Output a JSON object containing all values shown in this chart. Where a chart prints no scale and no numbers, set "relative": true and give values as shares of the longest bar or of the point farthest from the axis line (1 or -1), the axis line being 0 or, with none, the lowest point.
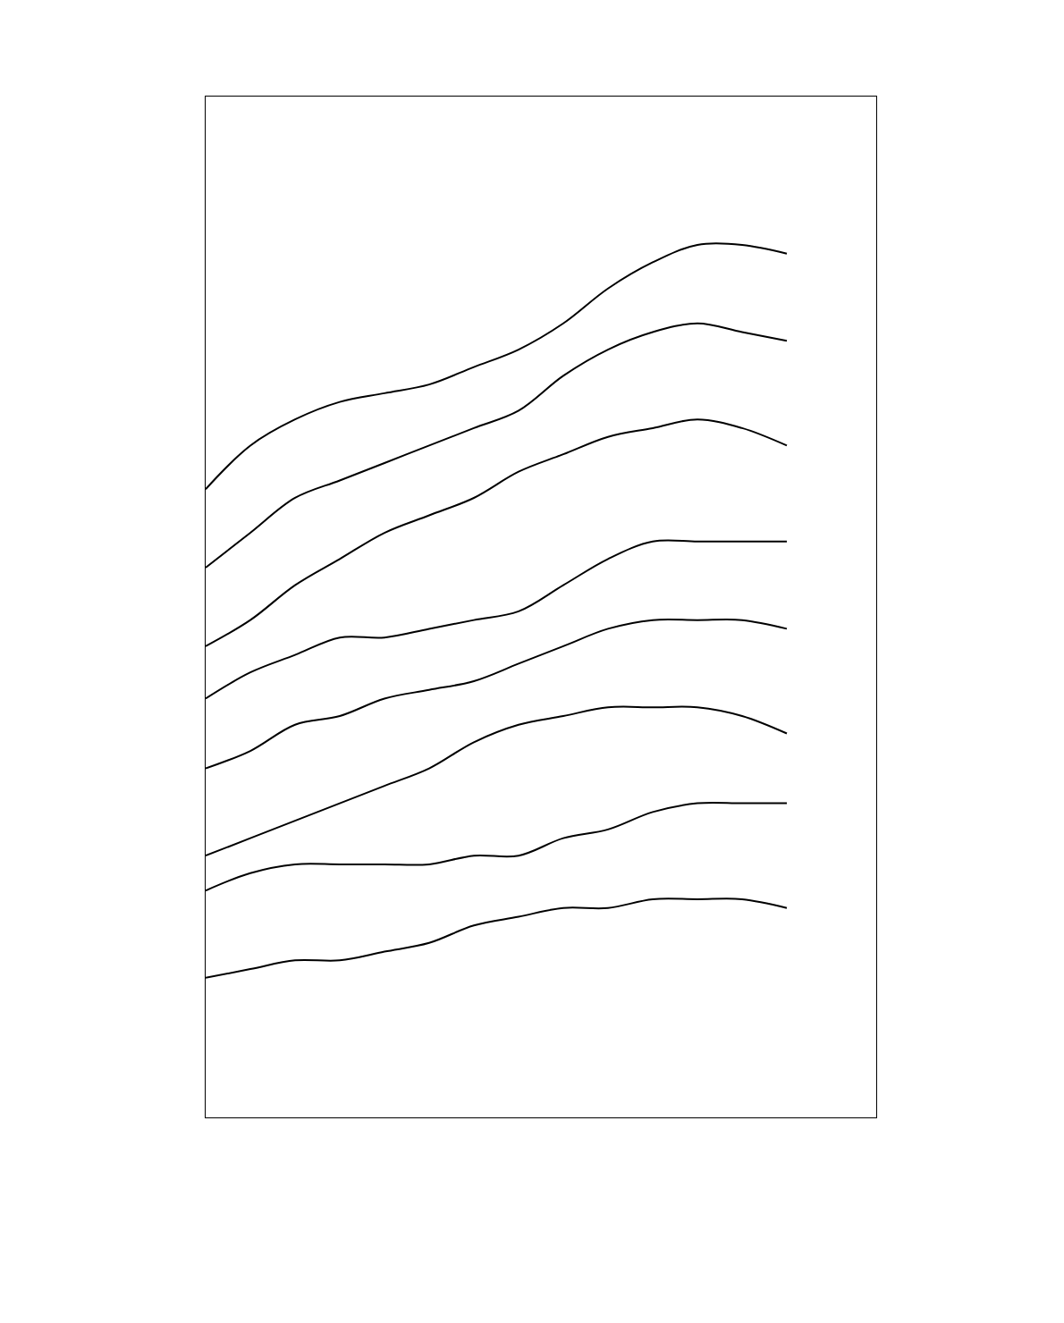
{
  "chart_data": {
    "type": "line",
    "relative": true,
    "marker": "none",
    "line_style": "solid",
    "categories": [
      null,
      null,
      null,
      null,
      null,
      null,
      null,
      null,
      null,
      null,
      null,
      null,
      null,
      null,
      null,
      null
    ],
    "series": [
      {
        "color": "#000000",
        "values": [
          0.72,
          0.77,
          0.8,
          0.82,
          0.83,
          0.84,
          0.86,
          0.88,
          0.91,
          0.95,
          0.98,
          1.0,
          1.0,
          0.99,
          null,
          null
        ]
      },
      {
        "color": "#000000",
        "values": [
          0.63,
          0.67,
          0.71,
          0.73,
          0.75,
          0.77,
          0.79,
          0.81,
          0.85,
          0.88,
          0.9,
          0.91,
          0.9,
          0.89,
          null,
          null
        ]
      },
      {
        "color": "#000000",
        "values": [
          0.54,
          0.57,
          0.61,
          0.64,
          0.67,
          0.69,
          0.71,
          0.74,
          0.76,
          0.78,
          0.79,
          0.8,
          0.79,
          0.77,
          null,
          null
        ]
      },
      {
        "color": "#000000",
        "values": [
          0.48,
          0.51,
          0.53,
          0.55,
          0.55,
          0.56,
          0.57,
          0.58,
          0.61,
          0.64,
          0.66,
          0.66,
          0.66,
          0.66,
          null,
          null
        ]
      },
      {
        "color": "#000000",
        "values": [
          0.4,
          0.42,
          0.45,
          0.46,
          0.48,
          0.49,
          0.5,
          0.52,
          0.54,
          0.56,
          0.57,
          0.57,
          0.57,
          0.56,
          null,
          null
        ]
      },
      {
        "color": "#000000",
        "values": [
          0.3,
          0.32,
          0.34,
          0.36,
          0.38,
          0.4,
          0.43,
          0.45,
          0.46,
          0.47,
          0.47,
          0.47,
          0.46,
          0.44,
          null,
          null
        ]
      },
      {
        "color": "#000000",
        "values": [
          0.26,
          0.28,
          0.29,
          0.29,
          0.29,
          0.29,
          0.3,
          0.3,
          0.32,
          0.33,
          0.35,
          0.36,
          0.36,
          0.36,
          null,
          null
        ]
      },
      {
        "color": "#000000",
        "values": [
          0.16,
          0.17,
          0.18,
          0.18,
          0.19,
          0.2,
          0.22,
          0.23,
          0.24,
          0.24,
          0.25,
          0.25,
          0.25,
          0.24,
          null,
          null
        ]
      }
    ]
  }
}
